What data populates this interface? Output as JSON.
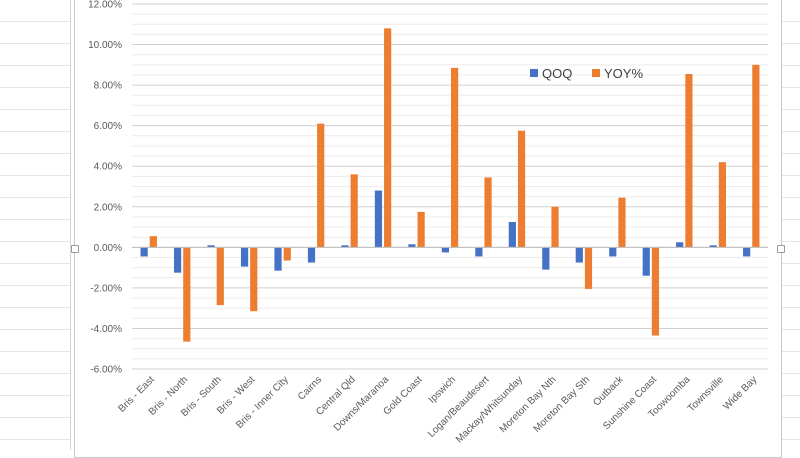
{
  "chart_data": {
    "type": "bar",
    "categories": [
      "Bris - East",
      "Bris - North",
      "Bris - South",
      "Bris - West",
      "Bris - Inner City",
      "Cairns",
      "Central Qld",
      "Downs/Maranoa",
      "Gold Coast",
      "Ipswich",
      "Logan/Beaudesert",
      "Mackay/Whitsunday",
      "Moreton Bay Nth",
      "Moreton Bay Sth",
      "Outback",
      "Sunshine Coast",
      "Toowoomba",
      "Townsville",
      "Wide Bay"
    ],
    "series": [
      {
        "name": "QOQ",
        "color": "#4472C4",
        "values": [
          -0.45,
          -1.25,
          0.1,
          -0.95,
          -1.15,
          -0.75,
          0.1,
          2.8,
          0.15,
          -0.25,
          -0.45,
          1.25,
          -1.1,
          -0.75,
          -0.45,
          -1.4,
          0.25,
          0.1,
          -0.45
        ]
      },
      {
        "name": "YOY%",
        "color": "#ED7D31",
        "values": [
          0.55,
          -4.65,
          -2.85,
          -3.15,
          -0.65,
          6.1,
          3.6,
          10.8,
          1.75,
          8.85,
          3.45,
          5.75,
          2.0,
          -2.05,
          2.45,
          -4.35,
          8.55,
          4.2,
          9.0
        ]
      }
    ],
    "yticks": [
      "12.00%",
      "10.00%",
      "8.00%",
      "6.00%",
      "4.00%",
      "2.00%",
      "0.00%",
      "-2.00%",
      "-4.00%",
      "-6.00%"
    ],
    "ylim": [
      -6,
      12
    ],
    "grid": true,
    "legend_position": "upper-right-inside",
    "title": "",
    "xlabel": "",
    "ylabel": ""
  }
}
